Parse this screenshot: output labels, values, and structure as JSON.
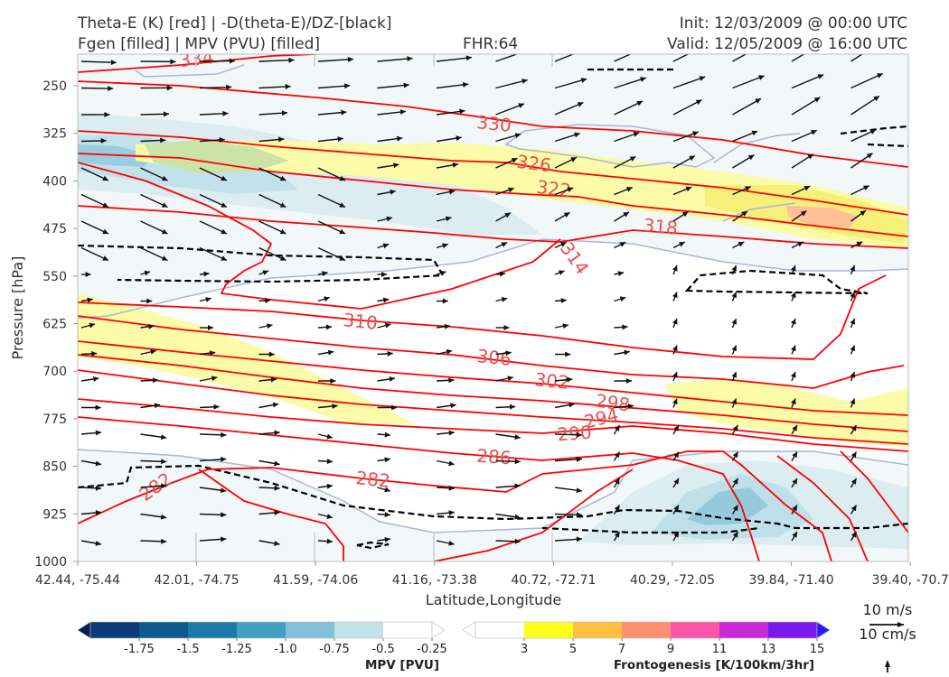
{
  "header": {
    "line1_left": "Theta-E (K) [red] | -D(theta-E)/DZ-[black]",
    "line2_left": "Fgen [filled] | MPV (PVU) [filled]",
    "line2_center": "FHR:64",
    "line1_right": "Init: 12/03/2009 @ 00:00 UTC",
    "line2_right": "Valid: 12/05/2009 @ 16:00 UTC"
  },
  "chart_data": {
    "type": "cross-section",
    "xlabel": "Latitude,Longitude",
    "ylabel": "Pressure [hPa]",
    "y_ticks": [
      250,
      325,
      400,
      475,
      550,
      625,
      700,
      775,
      850,
      925,
      1000
    ],
    "y_range": [
      1000,
      200
    ],
    "x_ticks": [
      "42.44, -75.44",
      "42.01, -74.75",
      "41.59, -74.06",
      "41.16, -73.38",
      "40.72, -72.71",
      "40.29, -72.05",
      "39.84, -71.40",
      "39.40, -70.7"
    ],
    "theta_e_contours": [
      {
        "label": "334",
        "level": 334
      },
      {
        "label": "330",
        "level": 330
      },
      {
        "label": "326",
        "level": 326
      },
      {
        "label": "322",
        "level": 322
      },
      {
        "label": "318",
        "level": 318
      },
      {
        "label": "314",
        "level": 314
      },
      {
        "label": "310",
        "level": 310
      },
      {
        "label": "306",
        "level": 306
      },
      {
        "label": "302",
        "level": 302
      },
      {
        "label": "298",
        "level": 298
      },
      {
        "label": "294",
        "level": 294
      },
      {
        "label": "290",
        "level": 290
      },
      {
        "label": "286",
        "level": 286
      },
      {
        "label": "282",
        "level": 282
      },
      {
        "label": "282",
        "level": 282
      }
    ],
    "theta_e_color": "#ff0000",
    "stability_contour_color": "#000000",
    "wind_reference": {
      "horizontal": "10 m/s",
      "vertical": "10 cm/s"
    }
  },
  "colorbars": {
    "mpv": {
      "title": "MPV [PVU]",
      "colors": [
        "#081d58",
        "#0b3c78",
        "#0c5a8e",
        "#1c7aa6",
        "#42a0c4",
        "#82c2d8",
        "#c2e1ea",
        "#ffffff"
      ],
      "labels": [
        "-1.75",
        "-1.5",
        "-1.25",
        "-1.0",
        "-0.75",
        "-0.5",
        "-0.25"
      ]
    },
    "fgen": {
      "title": "Frontogenesis [K/100km/3hr]",
      "colors": [
        "#ffffff",
        "#ffff1a",
        "#ffc040",
        "#ff9070",
        "#ff55a8",
        "#c82ad8",
        "#7a18ee",
        "#2a18ff"
      ],
      "labels": [
        "3",
        "5",
        "7",
        "9",
        "11",
        "13",
        "15"
      ]
    }
  }
}
